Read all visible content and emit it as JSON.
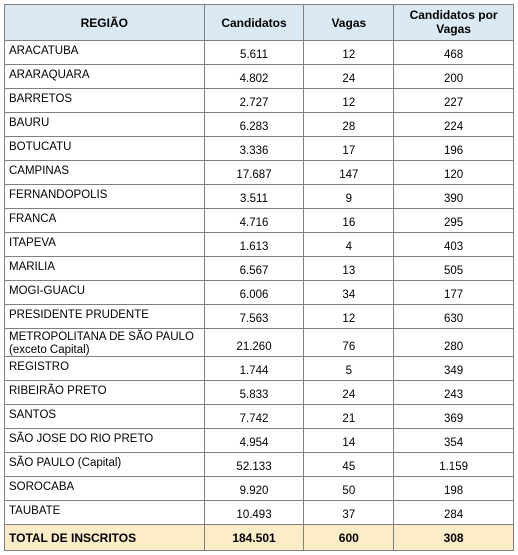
{
  "table": {
    "columns": {
      "regiao": "REGIÃO",
      "candidatos": "Candidatos",
      "vagas": "Vagas",
      "ratio": "Candidatos por Vagas"
    },
    "rows": [
      {
        "regiao": "ARACATUBA",
        "candidatos": "5.611",
        "vagas": "12",
        "ratio": "468"
      },
      {
        "regiao": "ARARAQUARA",
        "candidatos": "4.802",
        "vagas": "24",
        "ratio": "200"
      },
      {
        "regiao": "BARRETOS",
        "candidatos": "2.727",
        "vagas": "12",
        "ratio": "227"
      },
      {
        "regiao": "BAURU",
        "candidatos": "6.283",
        "vagas": "28",
        "ratio": "224"
      },
      {
        "regiao": "BOTUCATU",
        "candidatos": "3.336",
        "vagas": "17",
        "ratio": "196"
      },
      {
        "regiao": "CAMPINAS",
        "candidatos": "17.687",
        "vagas": "147",
        "ratio": "120"
      },
      {
        "regiao": "FERNANDOPOLIS",
        "candidatos": "3.511",
        "vagas": "9",
        "ratio": "390"
      },
      {
        "regiao": "FRANCA",
        "candidatos": "4.716",
        "vagas": "16",
        "ratio": "295"
      },
      {
        "regiao": "ITAPEVA",
        "candidatos": "1.613",
        "vagas": "4",
        "ratio": "403"
      },
      {
        "regiao": "MARILIA",
        "candidatos": "6.567",
        "vagas": "13",
        "ratio": "505"
      },
      {
        "regiao": "MOGI-GUACU",
        "candidatos": "6.006",
        "vagas": "34",
        "ratio": "177"
      },
      {
        "regiao": "PRESIDENTE PRUDENTE",
        "candidatos": "7.563",
        "vagas": "12",
        "ratio": "630"
      },
      {
        "regiao": "METROPOLITANA DE SÃO PAULO (exceto Capital)",
        "candidatos": "21.260",
        "vagas": "76",
        "ratio": "280",
        "multiline": true
      },
      {
        "regiao": "REGISTRO",
        "candidatos": "1.744",
        "vagas": "5",
        "ratio": "349"
      },
      {
        "regiao": "RIBEIRÃO PRETO",
        "candidatos": "5.833",
        "vagas": "24",
        "ratio": "243"
      },
      {
        "regiao": "SANTOS",
        "candidatos": "7.742",
        "vagas": "21",
        "ratio": "369"
      },
      {
        "regiao": "SÃO JOSE DO RIO PRETO",
        "candidatos": "4.954",
        "vagas": "14",
        "ratio": "354"
      },
      {
        "regiao": "SÃO PAULO (Capital)",
        "candidatos": "52.133",
        "vagas": "45",
        "ratio": "1.159"
      },
      {
        "regiao": "SOROCABA",
        "candidatos": "9.920",
        "vagas": "50",
        "ratio": "198"
      },
      {
        "regiao": "TAUBATE",
        "candidatos": "10.493",
        "vagas": "37",
        "ratio": "284"
      }
    ],
    "total": {
      "label": "TOTAL DE INSCRITOS",
      "candidatos": "184.501",
      "vagas": "600",
      "ratio": "308"
    },
    "colors": {
      "header_bg": "#dbe9f5",
      "total_bg": "#fdecc8",
      "border": "#808080",
      "text": "#000000"
    }
  }
}
